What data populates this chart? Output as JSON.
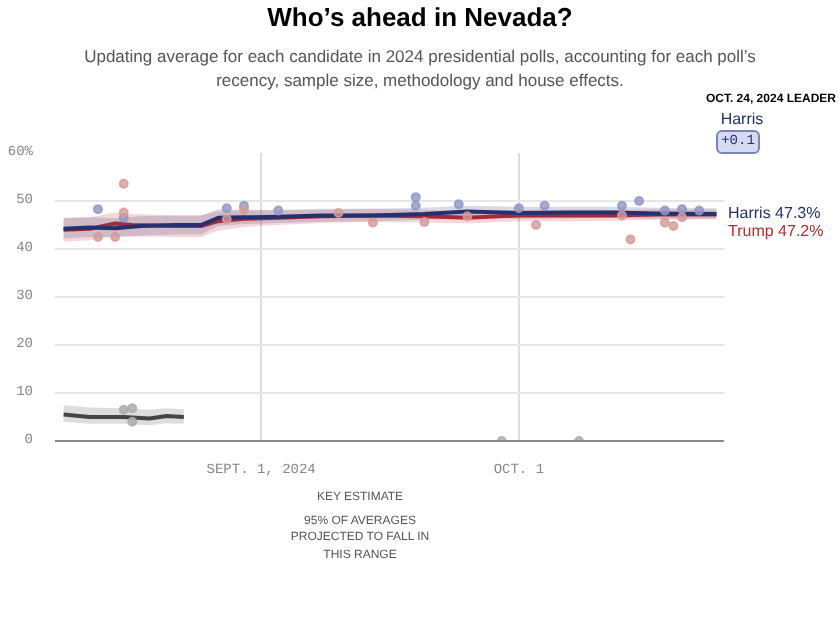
{
  "chart_data": {
    "type": "line",
    "title": "Who’s ahead in Nevada?",
    "subtitle": "Updating average for each candidate in 2024 presidential polls, accounting for each poll’s recency, sample size, methodology and house effects.",
    "annotations": [
      "OCT. 24, 2024 LEADER",
      "Harris",
      "+0.1",
      "KEY  ESTIMATE",
      "95% OF AVERAGES PROJECTED TO FALL IN THIS RANGE"
    ],
    "xlim": [
      "2024-08-08",
      "2024-10-25"
    ],
    "xticks": [
      {
        "value": "2024-09-01",
        "label": "SEPT. 1, 2024"
      },
      {
        "value": "2024-10-01",
        "label": "OCT. 1"
      }
    ],
    "ylim": [
      0,
      60
    ],
    "yticks": [
      0,
      10,
      20,
      30,
      40,
      50,
      {
        "value": 60,
        "label": "60%"
      }
    ],
    "grid": true,
    "legend": false,
    "line_style": "solid",
    "marker": "none",
    "series": [
      {
        "type": "scatter",
        "color": "#8f97c4",
        "marker": "circle",
        "x": [
          "2024-08-13",
          "2024-08-16",
          "2024-08-28",
          "2024-08-30",
          "2024-09-03",
          "2024-09-19",
          "2024-09-19",
          "2024-09-24",
          "2024-10-01",
          "2024-10-04",
          "2024-10-13",
          "2024-10-15",
          "2024-10-18",
          "2024-10-20",
          "2024-10-22"
        ],
        "values": [
          48.3,
          46.5,
          48.5,
          49.0,
          48.0,
          50.8,
          49.0,
          49.3,
          48.5,
          49.0,
          49.0,
          50.0,
          48.0,
          48.3,
          48.0
        ]
      },
      {
        "type": "scatter",
        "color": "#d49a9a",
        "marker": "circle",
        "x": [
          "2024-08-13",
          "2024-08-15",
          "2024-08-16",
          "2024-08-16",
          "2024-08-28",
          "2024-08-30",
          "2024-09-10",
          "2024-09-14",
          "2024-09-20",
          "2024-09-25",
          "2024-10-03",
          "2024-10-13",
          "2024-10-14",
          "2024-10-18",
          "2024-10-19",
          "2024-10-20"
        ],
        "values": [
          42.5,
          42.5,
          53.6,
          47.6,
          46.2,
          48.2,
          47.5,
          45.5,
          45.6,
          46.8,
          45.0,
          47.0,
          42.0,
          45.5,
          44.8,
          46.6
        ]
      },
      {
        "type": "scatter",
        "color": "#aaaaaa",
        "marker": "circle",
        "x": [
          "2024-08-16",
          "2024-08-17",
          "2024-08-17",
          "2024-09-29",
          "2024-10-08"
        ],
        "values": [
          6.5,
          4.0,
          6.8,
          0,
          0
        ]
      },
      {
        "color": "#444444",
        "x": [
          "2024-08-09",
          "2024-08-12",
          "2024-08-16",
          "2024-08-19",
          "2024-08-21",
          "2024-08-23"
        ],
        "values": [
          5.5,
          5.0,
          5.0,
          4.7,
          5.2,
          5.0
        ],
        "lower": [
          4.0,
          3.6,
          3.6,
          3.3,
          3.7,
          3.6
        ],
        "upper": [
          7.5,
          7.0,
          6.8,
          6.5,
          6.8,
          6.6
        ]
      },
      {
        "name": "Trump",
        "color": "#c0282e",
        "x": [
          "2024-08-09",
          "2024-08-12",
          "2024-08-15",
          "2024-08-17",
          "2024-08-22",
          "2024-08-25",
          "2024-08-27",
          "2024-08-30",
          "2024-09-03",
          "2024-09-08",
          "2024-09-14",
          "2024-09-20",
          "2024-09-25",
          "2024-10-01",
          "2024-10-07",
          "2024-10-12",
          "2024-10-17",
          "2024-10-24"
        ],
        "values": [
          44.0,
          44.2,
          45.3,
          45.0,
          44.8,
          44.8,
          45.8,
          46.3,
          46.5,
          46.8,
          47.0,
          46.8,
          46.5,
          47.0,
          47.0,
          47.0,
          47.2,
          47.2
        ],
        "lower": [
          41.5,
          41.8,
          42.8,
          42.6,
          42.5,
          42.5,
          43.8,
          44.6,
          45.0,
          45.4,
          45.6,
          45.5,
          45.3,
          45.8,
          45.8,
          45.9,
          46.1,
          46.2
        ],
        "upper": [
          46.5,
          46.6,
          47.6,
          47.3,
          47.0,
          47.0,
          47.8,
          48.0,
          48.0,
          48.2,
          48.4,
          48.1,
          47.8,
          48.2,
          48.2,
          48.1,
          48.3,
          48.2
        ],
        "value_labels": [
          null,
          null,
          null,
          null,
          null,
          null,
          null,
          null,
          null,
          null,
          null,
          null,
          null,
          null,
          null,
          null,
          null,
          "47.2%"
        ]
      },
      {
        "name": "Harris",
        "color": "#25306e",
        "x": [
          "2024-08-09",
          "2024-08-12",
          "2024-08-15",
          "2024-08-18",
          "2024-08-22",
          "2024-08-25",
          "2024-08-27",
          "2024-08-30",
          "2024-09-03",
          "2024-09-08",
          "2024-09-14",
          "2024-09-20",
          "2024-09-25",
          "2024-10-01",
          "2024-10-07",
          "2024-10-12",
          "2024-10-17",
          "2024-10-24"
        ],
        "values": [
          44.2,
          44.5,
          44.3,
          44.8,
          45.0,
          45.0,
          46.5,
          46.6,
          46.7,
          47.0,
          47.0,
          47.3,
          47.8,
          47.5,
          47.6,
          47.6,
          47.4,
          47.3
        ],
        "lower": [
          42.2,
          42.5,
          42.4,
          42.8,
          43.0,
          43.0,
          44.8,
          45.2,
          45.4,
          45.7,
          45.8,
          46.1,
          46.5,
          46.3,
          46.4,
          46.5,
          46.3,
          46.3
        ],
        "upper": [
          46.4,
          46.6,
          46.4,
          46.8,
          47.0,
          47.0,
          48.3,
          48.2,
          48.2,
          48.4,
          48.4,
          48.6,
          49.0,
          48.8,
          48.8,
          48.8,
          48.6,
          48.5
        ],
        "value_labels": [
          null,
          null,
          null,
          null,
          null,
          null,
          null,
          null,
          null,
          null,
          null,
          null,
          null,
          null,
          null,
          null,
          null,
          "47.3%"
        ]
      }
    ]
  }
}
